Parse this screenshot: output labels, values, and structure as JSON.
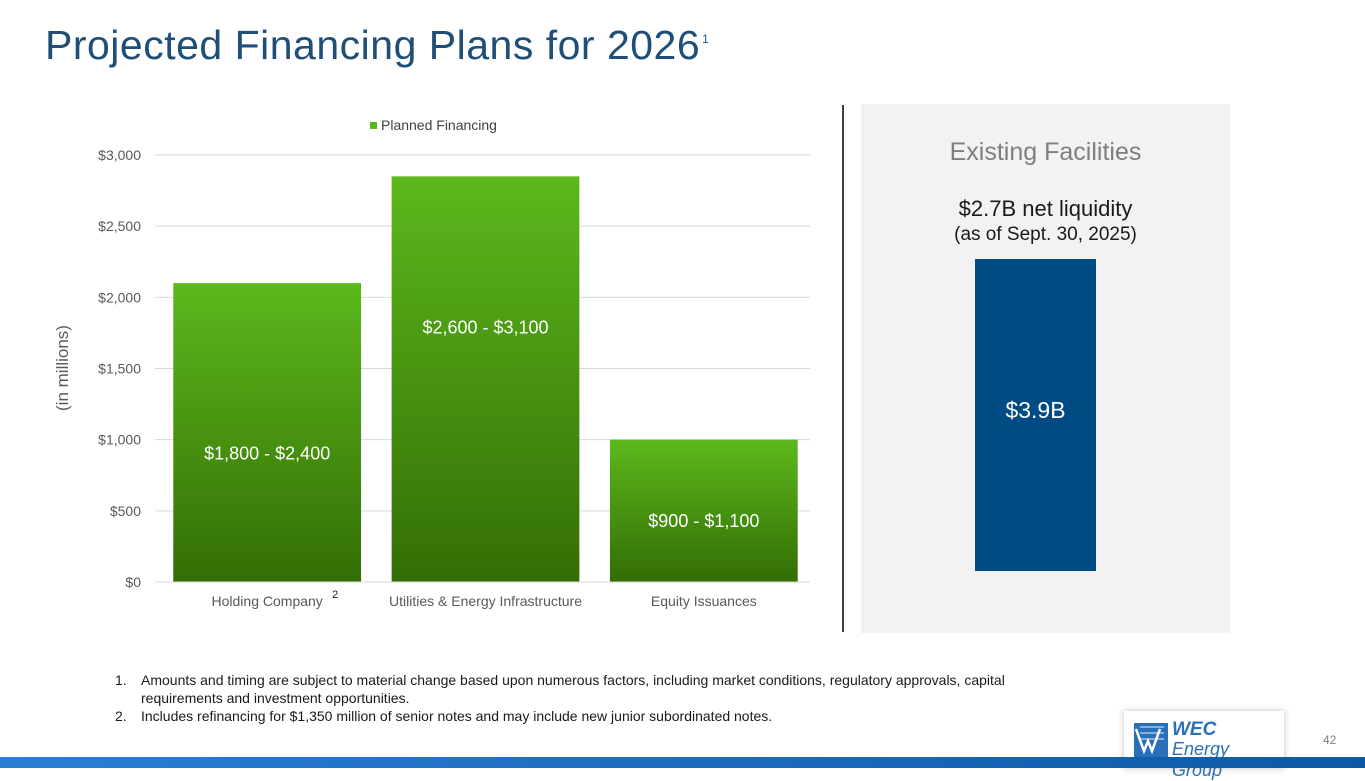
{
  "title": "Projected Financing Plans for 2026",
  "title_footnote": "1",
  "chart_data": {
    "type": "bar",
    "title": "",
    "ylabel": "(in millions)",
    "xlabel": "",
    "ylim": [
      0,
      3000
    ],
    "yticks": [
      0,
      500,
      1000,
      1500,
      2000,
      2500,
      3000
    ],
    "ytick_labels": [
      "$0",
      "$500",
      "$1,000",
      "$1,500",
      "$2,000",
      "$2,500",
      "$3,000"
    ],
    "categories": [
      "Holding Company",
      "Utilities & Energy Infrastructure",
      "Equity Issuances"
    ],
    "category_footnotes": [
      "2",
      "",
      ""
    ],
    "grid": true,
    "legend_position": "top",
    "series": [
      {
        "name": "Planned Financing",
        "color": "#5cb81c",
        "values": [
          2100,
          2850,
          1000
        ],
        "labels": [
          "$1,800 - $2,400",
          "$2,600 - $3,100",
          "$900 - $1,100"
        ]
      }
    ]
  },
  "panel": {
    "title": "Existing Facilities",
    "liquidity": "$2.7B net liquidity",
    "as_of": "(as of Sept. 30, 2025)",
    "bar_value": "$3.9B",
    "bar_color": "#004b84"
  },
  "footnotes": [
    {
      "num": "1.",
      "text": "Amounts and timing are subject to material change based upon numerous factors, including market conditions, regulatory approvals, capital requirements and investment opportunities."
    },
    {
      "num": "2.",
      "text": "Includes refinancing for $1,350 million of senior notes and may include new junior subordinated notes."
    }
  ],
  "logo": {
    "line1": "WEC",
    "line2": "Energy Group",
    "icon": "wec-logo-icon"
  },
  "page_number": "42"
}
